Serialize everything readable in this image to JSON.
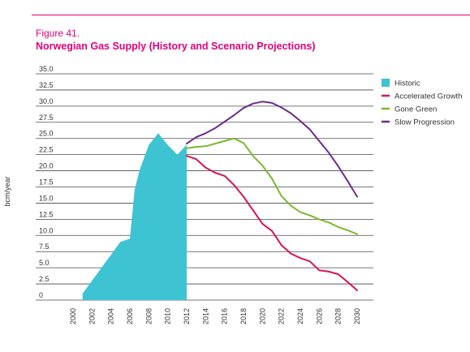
{
  "figure": {
    "label": "Figure 41.",
    "title": "Norwegian Gas Supply (History and Scenario Projections)"
  },
  "chart_data": {
    "type": "area",
    "ylabel": "bcm/year",
    "ylim": [
      0,
      35
    ],
    "yticks": [
      "35.0",
      "32.5",
      "30.0",
      "27.5",
      "25.0",
      "22.5",
      "20.0",
      "17.5",
      "15.0",
      "12.5",
      "10.0",
      "7.5",
      "5.0",
      "2.5",
      "0"
    ],
    "xlim": [
      2000,
      2030
    ],
    "xticks": [
      "2000",
      "2002",
      "2004",
      "2006",
      "2008",
      "2010",
      "2012",
      "2014",
      "2016",
      "2018",
      "2020",
      "2022",
      "2024",
      "2026",
      "2028",
      "2030"
    ],
    "grid": true,
    "legend_position": "right",
    "series": [
      {
        "name": "Historic",
        "kind": "area",
        "color": "#3ec3d3",
        "x": [
          2001,
          2002,
          2003,
          2004,
          2005,
          2006,
          2006.5,
          2007,
          2008,
          2009,
          2010,
          2011,
          2012
        ],
        "y": [
          1.0,
          3.0,
          5.0,
          7.0,
          9.0,
          9.5,
          17.0,
          20.0,
          24.0,
          25.8,
          24.0,
          22.5,
          24.0
        ]
      },
      {
        "name": "Accelerated Growth",
        "kind": "line",
        "color": "#d4145a",
        "x": [
          2012,
          2013,
          2014,
          2015,
          2016,
          2017,
          2018,
          2019,
          2020,
          2021,
          2022,
          2023,
          2024,
          2025,
          2026,
          2027,
          2028,
          2029,
          2030
        ],
        "y": [
          22.3,
          21.8,
          20.5,
          19.7,
          19.2,
          17.8,
          16.0,
          13.9,
          11.8,
          10.7,
          8.5,
          7.2,
          6.5,
          6.0,
          4.6,
          4.4,
          4.0,
          2.8,
          1.5
        ]
      },
      {
        "name": "Gone Green",
        "kind": "line",
        "color": "#7cb82f",
        "x": [
          2012,
          2013,
          2014,
          2015,
          2016,
          2017,
          2018,
          2019,
          2020,
          2021,
          2022,
          2023,
          2024,
          2025,
          2026,
          2027,
          2028,
          2029,
          2030
        ],
        "y": [
          23.5,
          23.7,
          23.8,
          24.2,
          24.6,
          25.0,
          24.3,
          22.3,
          20.8,
          18.8,
          16.1,
          14.6,
          13.6,
          13.1,
          12.5,
          12.0,
          11.3,
          10.8,
          10.2
        ]
      },
      {
        "name": "Slow Progression",
        "kind": "line",
        "color": "#6b2d8c",
        "x": [
          2012,
          2013,
          2014,
          2015,
          2016,
          2017,
          2018,
          2019,
          2020,
          2021,
          2022,
          2023,
          2024,
          2025,
          2026,
          2027,
          2028,
          2029,
          2030
        ],
        "y": [
          24.2,
          25.2,
          25.8,
          26.6,
          27.6,
          28.6,
          29.7,
          30.4,
          30.7,
          30.5,
          29.8,
          28.9,
          27.7,
          26.4,
          24.6,
          22.8,
          20.7,
          18.4,
          16.0
        ]
      }
    ]
  }
}
